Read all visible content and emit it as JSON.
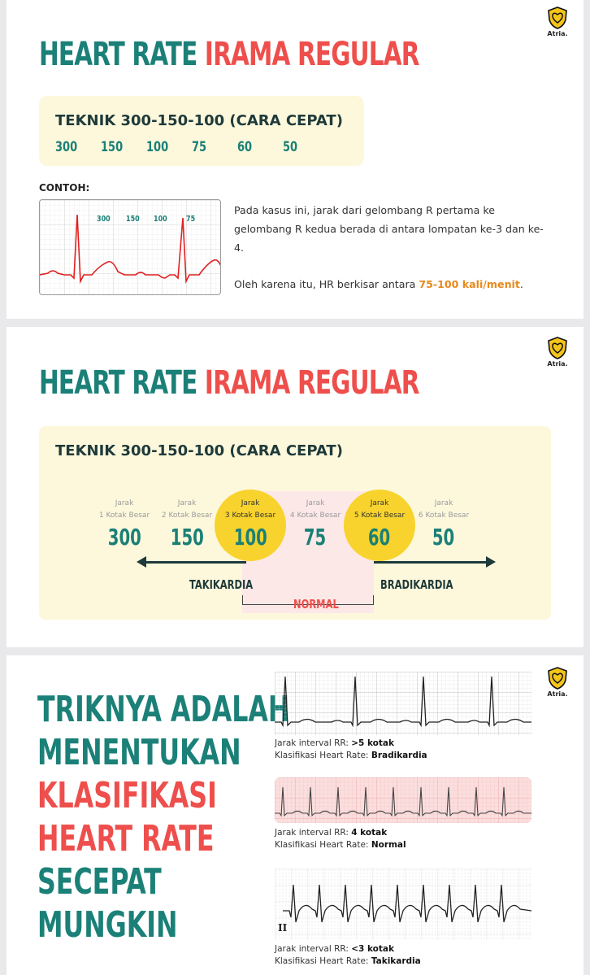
{
  "logo": {
    "text": "Atria."
  },
  "slide1": {
    "title_part1": "HEART RATE",
    "title_part2": "IRAMA REGULAR",
    "box_heading": "TEKNIK 300-150-100 (CARA CEPAT)",
    "numbers": [
      "300",
      "150",
      "100",
      "75",
      "60",
      "50"
    ],
    "example_label": "CONTOH:",
    "ecg_labels": [
      "300",
      "150",
      "100",
      "75"
    ],
    "paragraph1": "Pada kasus ini, jarak dari gelombang R pertama ke gelombang R kedua berada di antara lompatan ke-3 dan ke-4.",
    "paragraph2_prefix": "Oleh karena itu, HR berkisar antara",
    "paragraph2_highlight": "75-100 kali/menit",
    "paragraph2_suffix": "."
  },
  "slide2": {
    "title_part1": "HEART RATE",
    "title_part2": "IRAMA REGULAR",
    "box_heading": "TEKNIK 300-150-100 (CARA CEPAT)",
    "columns": [
      {
        "jarak": "Jarak",
        "kotak": "1 Kotak Besar",
        "value": "300",
        "highlight": false
      },
      {
        "jarak": "Jarak",
        "kotak": "2 Kotak Besar",
        "value": "150",
        "highlight": false
      },
      {
        "jarak": "Jarak",
        "kotak": "3 Kotak Besar",
        "value": "100",
        "highlight": true
      },
      {
        "jarak": "Jarak",
        "kotak": "4 Kotak Besar",
        "value": "75",
        "highlight": false
      },
      {
        "jarak": "Jarak",
        "kotak": "5 Kotak Besar",
        "value": "60",
        "highlight": true
      },
      {
        "jarak": "Jarak",
        "kotak": "6 Kotak Besar",
        "value": "50",
        "highlight": false
      }
    ],
    "left_label": "TAKIKARDIA",
    "right_label": "BRADIKARDIA",
    "center_label": "NORMAL"
  },
  "slide3": {
    "lines": [
      {
        "text": "TRIKNYA ADALAH",
        "color": "#1b8077"
      },
      {
        "text": "MENENTUKAN",
        "color": "#1b8077"
      },
      {
        "text": "KLASIFIKASI",
        "color": "#ee4f4c"
      },
      {
        "text": "HEART RATE",
        "color": "#ee4f4c"
      },
      {
        "text": "SECEPAT",
        "color": "#1b8077"
      },
      {
        "text": "MUNGKIN",
        "color": "#1b8077"
      }
    ],
    "examples": [
      {
        "rr_label": "Jarak interval RR: ",
        "rr_value": ">5 kotak",
        "cls_label": "Klasifikasi Heart Rate: ",
        "cls_value": "Bradikardia"
      },
      {
        "rr_label": "Jarak interval RR: ",
        "rr_value": "4 kotak",
        "cls_label": "Klasifikasi Heart Rate: ",
        "cls_value": "Normal"
      },
      {
        "rr_label": "Jarak interval RR: ",
        "rr_value": "<3 kotak",
        "cls_label": "Klasifikasi Heart Rate: ",
        "cls_value": "Takikardia"
      }
    ],
    "lead_label": "II"
  },
  "colors": {
    "teal": "#1b8077",
    "red": "#ee4f4c",
    "cream": "#fdf8dc",
    "yellow": "#f8d32d",
    "orange": "#e8891c"
  }
}
